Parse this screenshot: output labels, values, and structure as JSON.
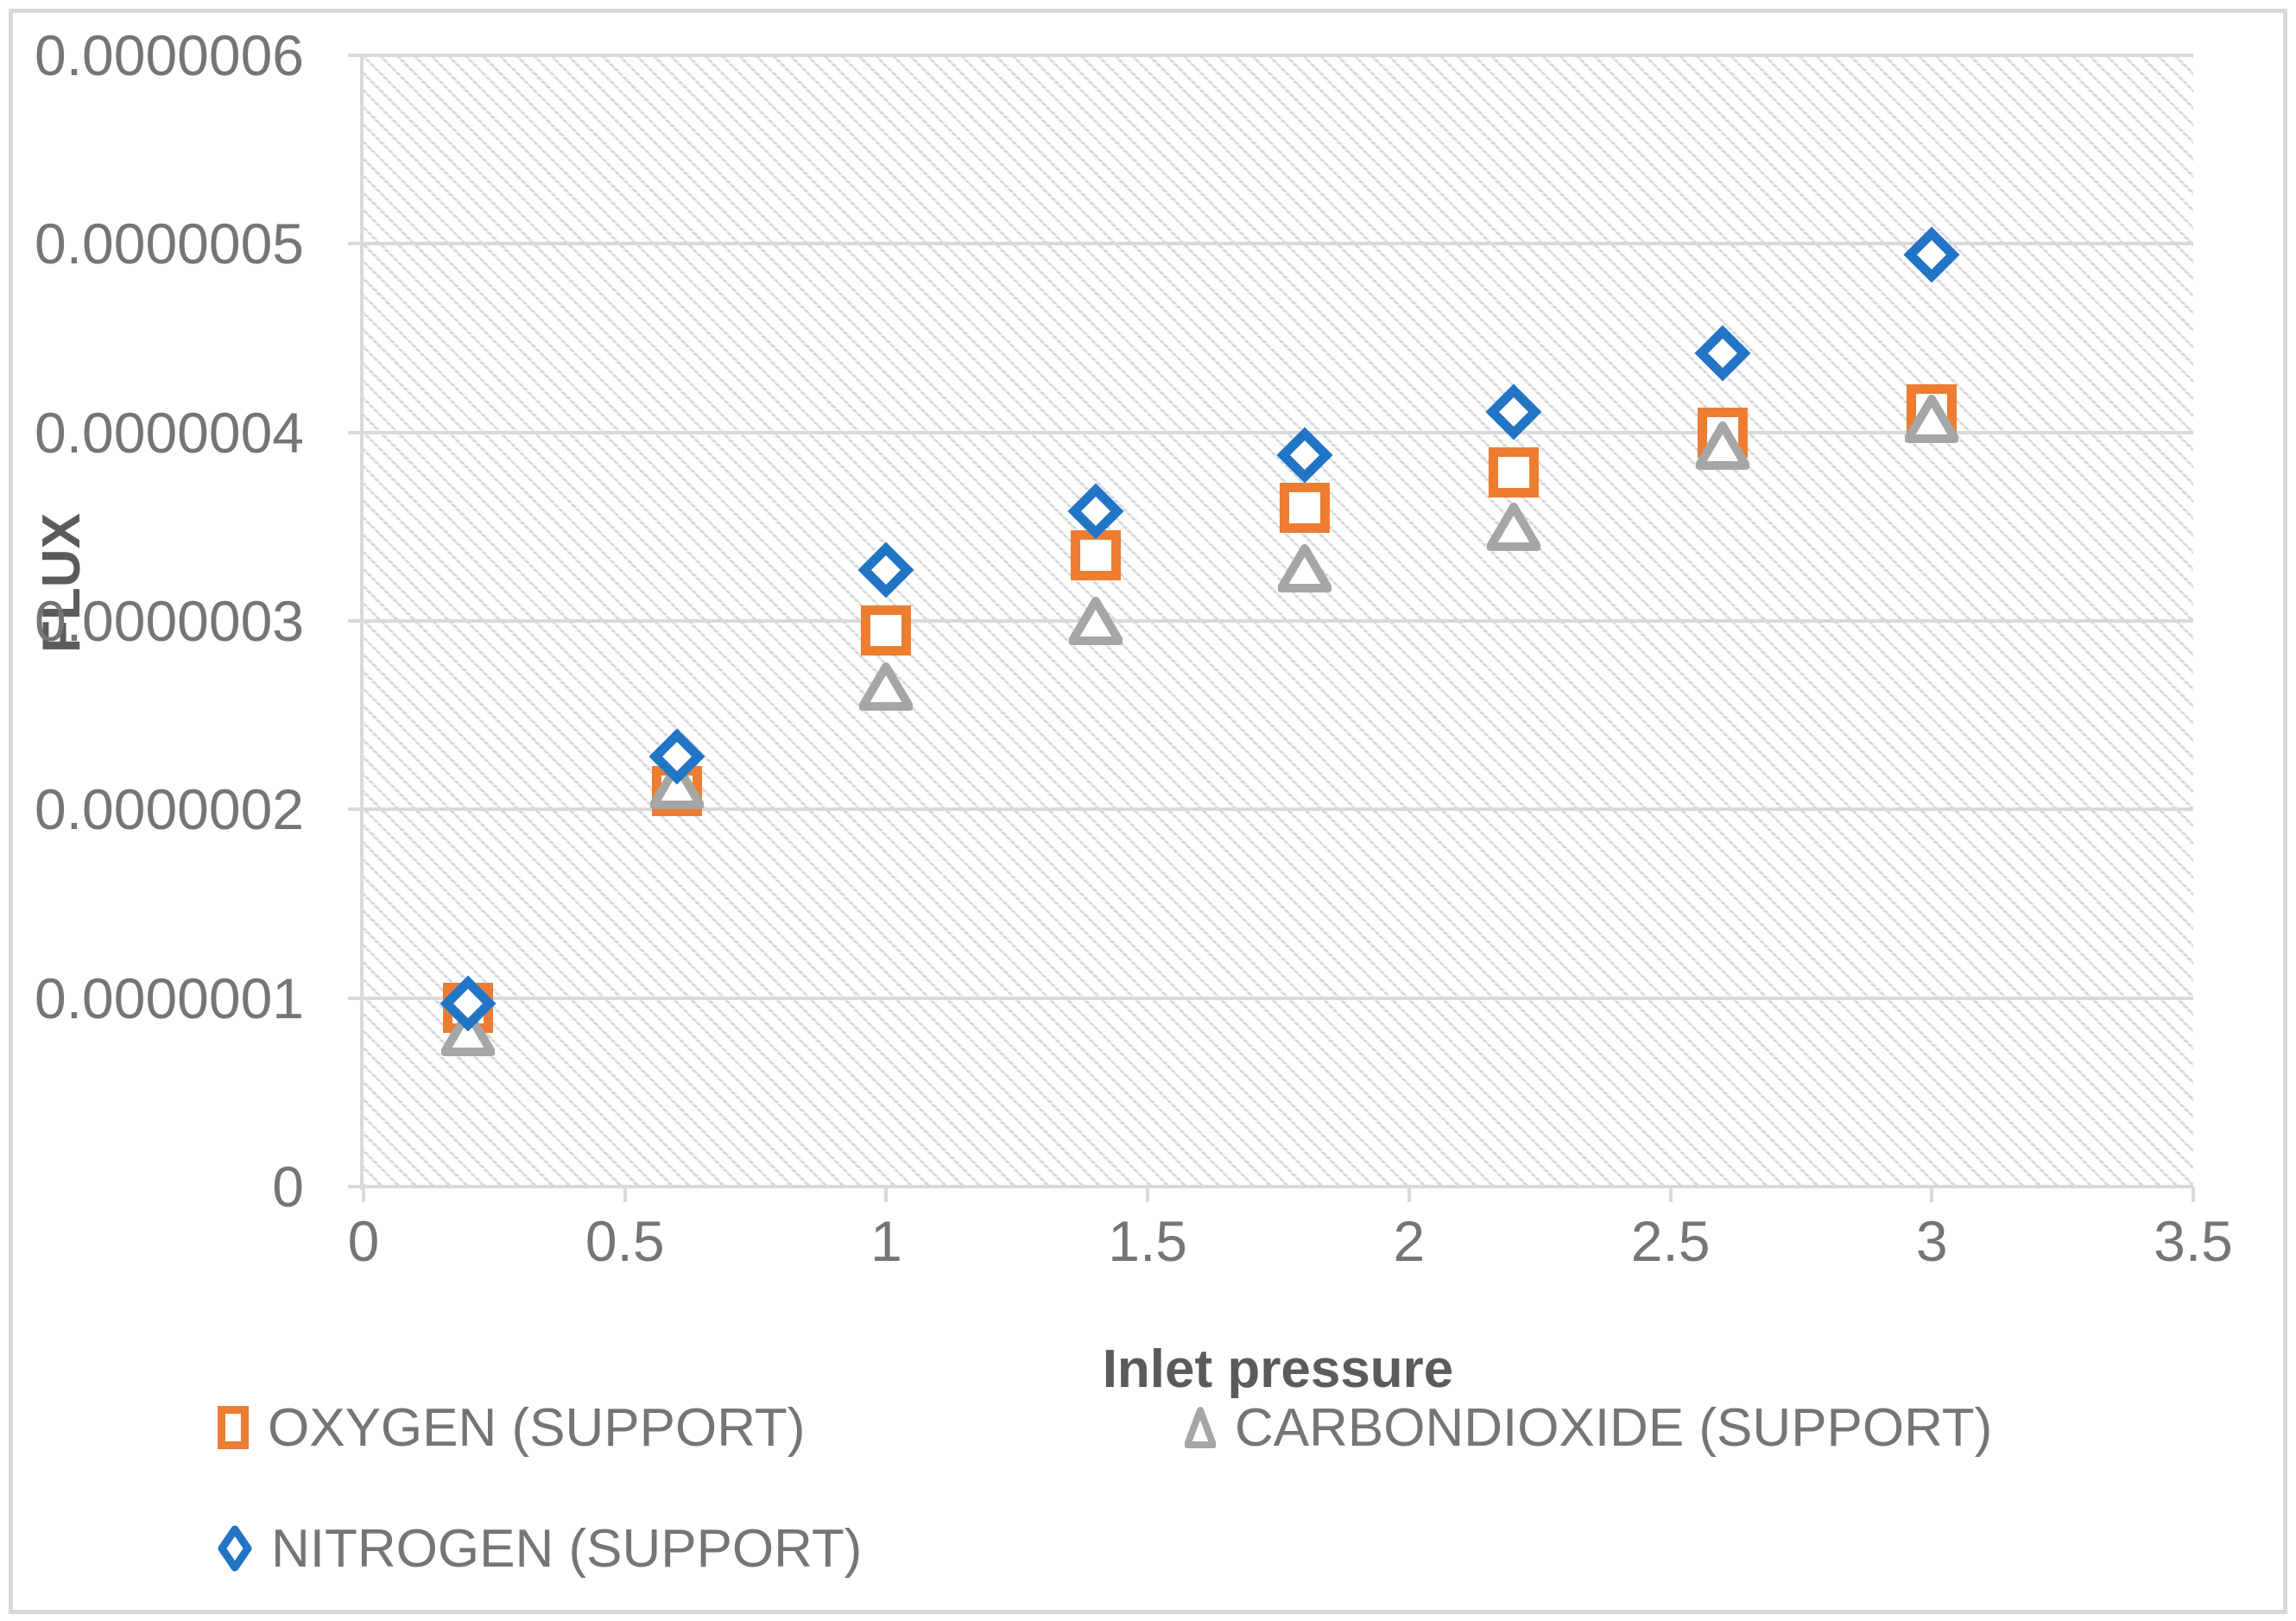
{
  "chart_data": {
    "type": "scatter",
    "title": "",
    "xlabel": "Inlet pressure",
    "ylabel": "FLUX",
    "xlim": [
      0,
      3.5
    ],
    "ylim": [
      0,
      6e-07
    ],
    "grid": "horizontal",
    "plot_background": "diagonal-hatch",
    "legend_position": "bottom",
    "x_tick_labels": [
      "0",
      "0.5",
      "1",
      "1.5",
      "2",
      "2.5",
      "3",
      "3.5"
    ],
    "x_tick_values": [
      0,
      0.5,
      1,
      1.5,
      2,
      2.5,
      3,
      3.5
    ],
    "y_tick_labels": [
      "0",
      "0.0000001",
      "0.0000002",
      "0.0000003",
      "0.0000004",
      "0.0000005",
      "0.0000006"
    ],
    "y_tick_values": [
      0,
      1e-07,
      2e-07,
      3e-07,
      4e-07,
      5e-07,
      6e-07
    ],
    "x": [
      0.2,
      0.6,
      1,
      1.4,
      1.8,
      2.2,
      2.6,
      3
    ],
    "series": [
      {
        "name": "OXYGEN (SUPPORT)",
        "marker": "square",
        "color": "#ED7D31",
        "values": [
          9.5e-08,
          2.1e-07,
          2.95e-07,
          3.35e-07,
          3.6e-07,
          3.79e-07,
          4e-07,
          4.12e-07
        ]
      },
      {
        "name": "CARBONDIOXIDE (SUPPORT)",
        "marker": "triangle",
        "color": "#A6A6A6",
        "values": [
          8.2e-08,
          2.13e-07,
          2.65e-07,
          3e-07,
          3.28e-07,
          3.5e-07,
          3.93e-07,
          4.07e-07
        ]
      },
      {
        "name": "NITROGEN (SUPPORT)",
        "marker": "diamond",
        "color": "#2274C5",
        "values": [
          9.7e-08,
          2.28e-07,
          3.27e-07,
          3.58e-07,
          3.88e-07,
          4.11e-07,
          4.42e-07,
          4.94e-07
        ]
      }
    ],
    "colors": {
      "gridline": "#D9D9D9",
      "tick_text": "#757575",
      "title_text": "#5B5B5B",
      "frame_border": "#D8D8D8"
    }
  }
}
